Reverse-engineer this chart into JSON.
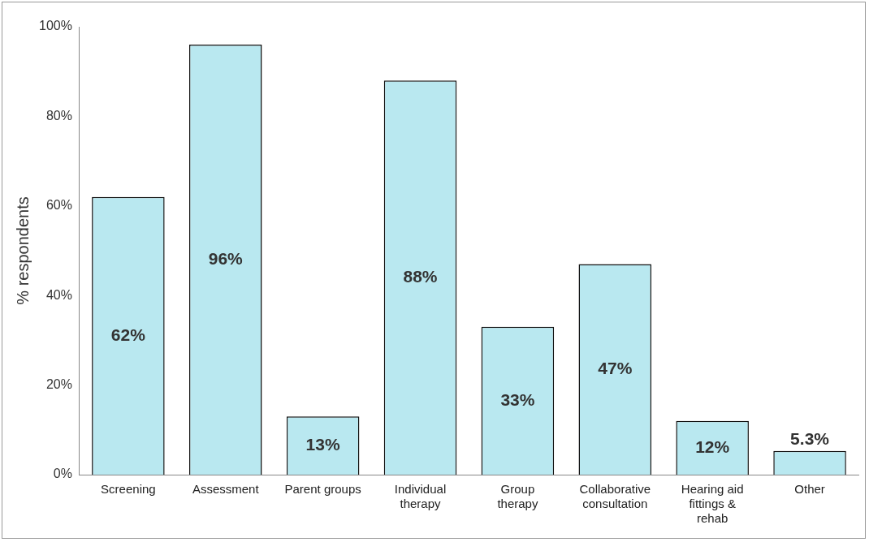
{
  "chart_data": {
    "type": "bar",
    "ylabel": "% respondents",
    "categories": [
      "Screening",
      "Assessment",
      "Parent groups",
      "Individual therapy",
      "Group therapy",
      "Collaborative consultation",
      "Hearing aid fittings & rehab",
      "Other"
    ],
    "values": [
      62,
      96,
      13,
      88,
      33,
      47,
      12,
      5.3
    ],
    "value_labels": [
      "62%",
      "96%",
      "13%",
      "88%",
      "33%",
      "47%",
      "12%",
      "5.3%"
    ],
    "color": "#b9e8f0",
    "ylim": [
      0,
      100
    ],
    "yticks": [
      {
        "value": 0,
        "label": "0%"
      },
      {
        "value": 20,
        "label": "20%"
      },
      {
        "value": 40,
        "label": "40%"
      },
      {
        "value": 60,
        "label": "60%"
      },
      {
        "value": 80,
        "label": "80%"
      },
      {
        "value": 100,
        "label": "100%"
      }
    ],
    "grid": false,
    "legend": false
  }
}
